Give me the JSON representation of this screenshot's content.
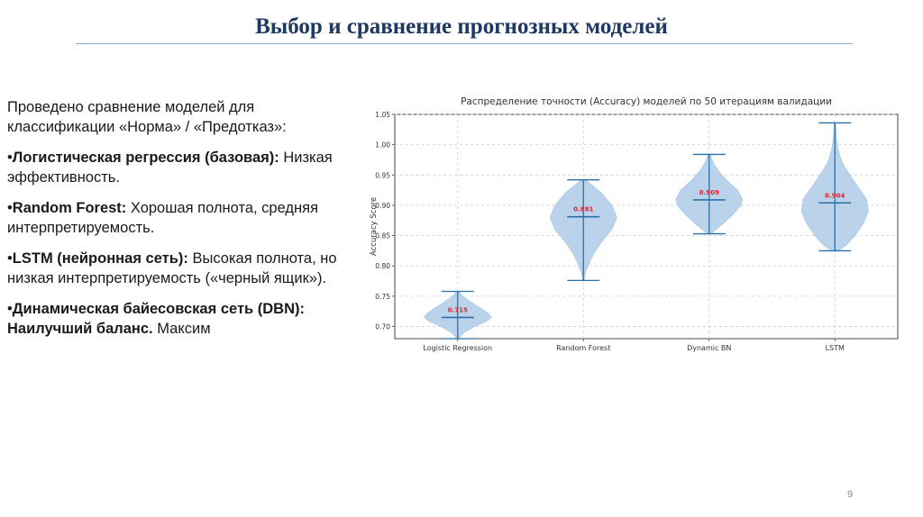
{
  "slide": {
    "title": "Выбор и сравнение прогнозных моделей",
    "page_number": "9"
  },
  "text": {
    "intro": "Проведено сравнение моделей для классификации «Норма» / «Предотказ»:",
    "items": [
      {
        "bullet": "•",
        "bold": "Логистическая регрессия (базовая):",
        "rest": " Низкая эффективность."
      },
      {
        "bullet": "•",
        "bold": "Random Forest:",
        "rest": " Хорошая полнота, средняя интерпретируемость."
      },
      {
        "bullet": "•",
        "bold": "LSTM (нейронная сеть):",
        "rest": " Высокая полнота, но низкая интерпретируемость («черный ящик»)."
      },
      {
        "bullet": "•",
        "bold": "Динамическая байесовская сеть (DBN): Наилучший баланс.",
        "rest": " Максим"
      }
    ]
  },
  "colors": {
    "title": "#1f3864",
    "violin_fill": "#a9c8e6",
    "violin_line": "#2b6fa8",
    "median_label": "#e8202a"
  },
  "chart_data": {
    "type": "violin",
    "title": "Распределение точности (Accuracy) моделей по 50 итерациям валидации",
    "xlabel": "",
    "ylabel": "Accuracy Score",
    "ylim": [
      0.68,
      1.05
    ],
    "yticks": [
      "0.70",
      "0.75",
      "0.80",
      "0.85",
      "0.90",
      "0.95",
      "1.00",
      "1.05"
    ],
    "grid": true,
    "categories": [
      "Logistic Regression",
      "Random Forest",
      "Dynamic BN",
      "LSTM"
    ],
    "series": [
      {
        "min": 0.68,
        "max": 0.758,
        "median": 0.715,
        "median_label": "0.715",
        "profile": [
          [
            0.68,
            0.02
          ],
          [
            0.69,
            0.18
          ],
          [
            0.7,
            0.5
          ],
          [
            0.71,
            0.9
          ],
          [
            0.715,
            1.0
          ],
          [
            0.72,
            0.95
          ],
          [
            0.73,
            0.7
          ],
          [
            0.74,
            0.4
          ],
          [
            0.75,
            0.15
          ],
          [
            0.758,
            0.03
          ]
        ]
      },
      {
        "min": 0.776,
        "max": 0.942,
        "median": 0.881,
        "median_label": "0.881",
        "profile": [
          [
            0.776,
            0.02
          ],
          [
            0.79,
            0.06
          ],
          [
            0.8,
            0.14
          ],
          [
            0.82,
            0.3
          ],
          [
            0.84,
            0.55
          ],
          [
            0.86,
            0.85
          ],
          [
            0.88,
            1.0
          ],
          [
            0.9,
            0.85
          ],
          [
            0.92,
            0.55
          ],
          [
            0.935,
            0.22
          ],
          [
            0.942,
            0.05
          ]
        ]
      },
      {
        "min": 0.853,
        "max": 0.984,
        "median": 0.909,
        "median_label": "0.909",
        "profile": [
          [
            0.853,
            0.05
          ],
          [
            0.86,
            0.2
          ],
          [
            0.87,
            0.42
          ],
          [
            0.885,
            0.72
          ],
          [
            0.9,
            0.95
          ],
          [
            0.91,
            1.0
          ],
          [
            0.925,
            0.85
          ],
          [
            0.94,
            0.55
          ],
          [
            0.955,
            0.3
          ],
          [
            0.97,
            0.12
          ],
          [
            0.984,
            0.03
          ]
        ]
      },
      {
        "min": 0.825,
        "max": 1.036,
        "median": 0.904,
        "median_label": "0.904",
        "profile": [
          [
            0.825,
            0.1
          ],
          [
            0.835,
            0.35
          ],
          [
            0.85,
            0.6
          ],
          [
            0.87,
            0.85
          ],
          [
            0.89,
            1.0
          ],
          [
            0.91,
            0.95
          ],
          [
            0.93,
            0.7
          ],
          [
            0.95,
            0.45
          ],
          [
            0.97,
            0.22
          ],
          [
            0.99,
            0.1
          ],
          [
            1.01,
            0.05
          ],
          [
            1.036,
            0.02
          ]
        ]
      }
    ]
  }
}
